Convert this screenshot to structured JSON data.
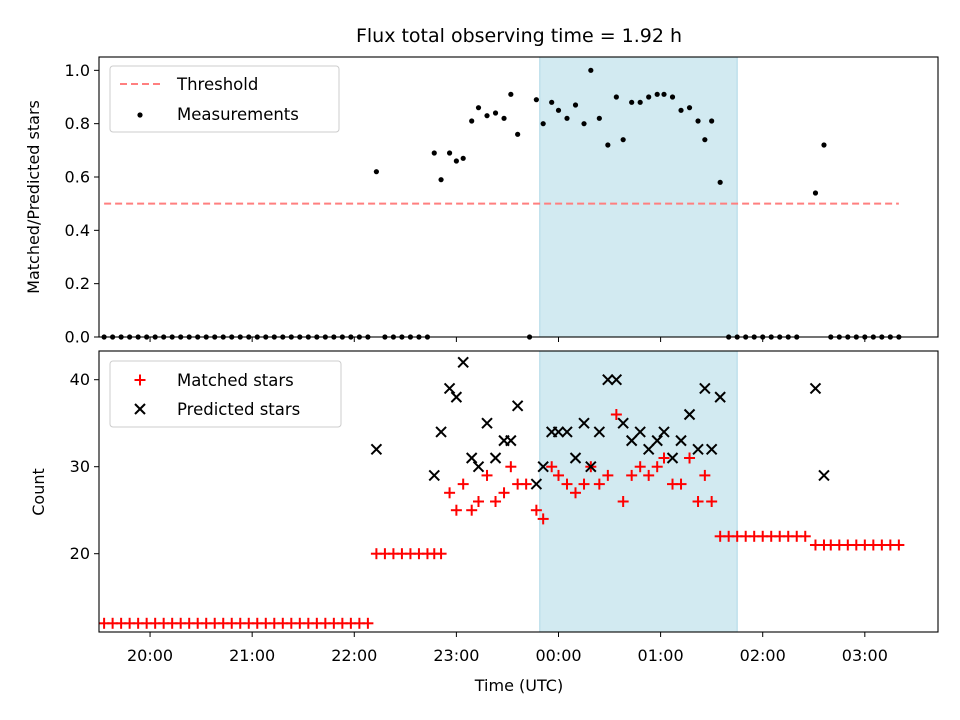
{
  "chart_data": [
    {
      "type": "scatter",
      "title": "Flux total observing time = 1.92 h",
      "xlabel": "",
      "ylabel": "Matched/Predicted stars",
      "ylim": [
        0,
        1.05
      ],
      "yticks": [
        "0.0",
        "0.2",
        "0.4",
        "0.6",
        "0.8",
        "1.0"
      ],
      "xlim": [
        "19:30",
        "03:43"
      ],
      "grid": false,
      "legend_placement": "top-left",
      "shaded_region": {
        "x_start": "23:49",
        "x_end": "01:45",
        "color": "#add8e6"
      },
      "threshold": {
        "name": "Threshold",
        "value": 0.5,
        "x_start": "19:33",
        "x_end": "03:20",
        "color": "#ff7f7f",
        "style": "dashed"
      },
      "series": [
        {
          "name": "Measurements",
          "color": "#000000",
          "marker": "dot",
          "points": [
            [
              "19:33",
              0
            ],
            [
              "19:38",
              0
            ],
            [
              "19:43",
              0
            ],
            [
              "19:48",
              0
            ],
            [
              "19:53",
              0
            ],
            [
              "19:58",
              0
            ],
            [
              "20:03",
              0
            ],
            [
              "20:08",
              0
            ],
            [
              "20:13",
              0
            ],
            [
              "20:18",
              0
            ],
            [
              "20:23",
              0
            ],
            [
              "20:28",
              0
            ],
            [
              "20:33",
              0
            ],
            [
              "20:38",
              0
            ],
            [
              "20:43",
              0
            ],
            [
              "20:48",
              0
            ],
            [
              "20:53",
              0
            ],
            [
              "20:58",
              0
            ],
            [
              "21:03",
              0
            ],
            [
              "21:08",
              0
            ],
            [
              "21:13",
              0
            ],
            [
              "21:18",
              0
            ],
            [
              "21:23",
              0
            ],
            [
              "21:28",
              0
            ],
            [
              "21:33",
              0
            ],
            [
              "21:38",
              0
            ],
            [
              "21:43",
              0
            ],
            [
              "21:48",
              0
            ],
            [
              "21:53",
              0
            ],
            [
              "21:58",
              0
            ],
            [
              "22:03",
              0
            ],
            [
              "22:08",
              0
            ],
            [
              "22:13",
              0.62
            ],
            [
              "22:18",
              0
            ],
            [
              "22:23",
              0
            ],
            [
              "22:28",
              0
            ],
            [
              "22:33",
              0
            ],
            [
              "22:38",
              0
            ],
            [
              "22:43",
              0
            ],
            [
              "22:47",
              0.69
            ],
            [
              "22:51",
              0.59
            ],
            [
              "22:56",
              0.69
            ],
            [
              "23:00",
              0.66
            ],
            [
              "23:04",
              0.67
            ],
            [
              "23:09",
              0.81
            ],
            [
              "23:13",
              0.86
            ],
            [
              "23:18",
              0.83
            ],
            [
              "23:23",
              0.84
            ],
            [
              "23:28",
              0.82
            ],
            [
              "23:32",
              0.91
            ],
            [
              "23:36",
              0.76
            ],
            [
              "23:43",
              0
            ],
            [
              "23:47",
              0.89
            ],
            [
              "23:51",
              0.8
            ],
            [
              "23:56",
              0.88
            ],
            [
              "00:00",
              0.85
            ],
            [
              "00:05",
              0.82
            ],
            [
              "00:10",
              0.87
            ],
            [
              "00:15",
              0.8
            ],
            [
              "00:19",
              1.0
            ],
            [
              "00:24",
              0.82
            ],
            [
              "00:29",
              0.72
            ],
            [
              "00:34",
              0.9
            ],
            [
              "00:38",
              0.74
            ],
            [
              "00:43",
              0.88
            ],
            [
              "00:48",
              0.88
            ],
            [
              "00:53",
              0.9
            ],
            [
              "00:58",
              0.91
            ],
            [
              "01:02",
              0.91
            ],
            [
              "01:07",
              0.9
            ],
            [
              "01:12",
              0.85
            ],
            [
              "01:17",
              0.86
            ],
            [
              "01:22",
              0.81
            ],
            [
              "01:26",
              0.74
            ],
            [
              "01:30",
              0.81
            ],
            [
              "01:35",
              0.58
            ],
            [
              "01:40",
              0
            ],
            [
              "01:45",
              0
            ],
            [
              "01:50",
              0
            ],
            [
              "01:55",
              0
            ],
            [
              "02:00",
              0
            ],
            [
              "02:05",
              0
            ],
            [
              "02:10",
              0
            ],
            [
              "02:15",
              0
            ],
            [
              "02:20",
              0
            ],
            [
              "02:31",
              0.54
            ],
            [
              "02:36",
              0.72
            ],
            [
              "02:40",
              0
            ],
            [
              "02:45",
              0
            ],
            [
              "02:50",
              0
            ],
            [
              "02:55",
              0
            ],
            [
              "03:00",
              0
            ],
            [
              "03:05",
              0
            ],
            [
              "03:10",
              0
            ],
            [
              "03:15",
              0
            ],
            [
              "03:20",
              0
            ]
          ]
        }
      ]
    },
    {
      "type": "scatter",
      "title": "",
      "xlabel": "Time (UTC)",
      "ylabel": "Count",
      "ylim": [
        11,
        43.3
      ],
      "yticks": [
        "20",
        "30",
        "40"
      ],
      "xticks": [
        "20:00",
        "21:00",
        "22:00",
        "23:00",
        "00:00",
        "01:00",
        "02:00",
        "03:00"
      ],
      "xlim": [
        "19:30",
        "03:43"
      ],
      "grid": false,
      "legend_placement": "top-left",
      "shaded_region": {
        "x_start": "23:49",
        "x_end": "01:45",
        "color": "#add8e6"
      },
      "series": [
        {
          "name": "Matched stars",
          "color": "#ff0000",
          "marker": "plus",
          "points": [
            [
              "19:33",
              12
            ],
            [
              "19:38",
              12
            ],
            [
              "19:43",
              12
            ],
            [
              "19:48",
              12
            ],
            [
              "19:53",
              12
            ],
            [
              "19:58",
              12
            ],
            [
              "20:03",
              12
            ],
            [
              "20:08",
              12
            ],
            [
              "20:13",
              12
            ],
            [
              "20:18",
              12
            ],
            [
              "20:23",
              12
            ],
            [
              "20:28",
              12
            ],
            [
              "20:33",
              12
            ],
            [
              "20:38",
              12
            ],
            [
              "20:43",
              12
            ],
            [
              "20:48",
              12
            ],
            [
              "20:53",
              12
            ],
            [
              "20:58",
              12
            ],
            [
              "21:03",
              12
            ],
            [
              "21:08",
              12
            ],
            [
              "21:13",
              12
            ],
            [
              "21:18",
              12
            ],
            [
              "21:23",
              12
            ],
            [
              "21:28",
              12
            ],
            [
              "21:33",
              12
            ],
            [
              "21:38",
              12
            ],
            [
              "21:43",
              12
            ],
            [
              "21:48",
              12
            ],
            [
              "21:53",
              12
            ],
            [
              "21:58",
              12
            ],
            [
              "22:03",
              12
            ],
            [
              "22:08",
              12
            ],
            [
              "22:13",
              20
            ],
            [
              "22:18",
              20
            ],
            [
              "22:23",
              20
            ],
            [
              "22:28",
              20
            ],
            [
              "22:33",
              20
            ],
            [
              "22:38",
              20
            ],
            [
              "22:43",
              20
            ],
            [
              "22:47",
              20
            ],
            [
              "22:51",
              20
            ],
            [
              "22:56",
              27
            ],
            [
              "23:00",
              25
            ],
            [
              "23:04",
              28
            ],
            [
              "23:09",
              25
            ],
            [
              "23:13",
              26
            ],
            [
              "23:18",
              29
            ],
            [
              "23:23",
              26
            ],
            [
              "23:28",
              27
            ],
            [
              "23:32",
              30
            ],
            [
              "23:36",
              28
            ],
            [
              "23:41",
              28
            ],
            [
              "23:47",
              25
            ],
            [
              "23:51",
              24
            ],
            [
              "23:56",
              30
            ],
            [
              "00:00",
              29
            ],
            [
              "00:05",
              28
            ],
            [
              "00:10",
              27
            ],
            [
              "00:15",
              28
            ],
            [
              "00:19",
              30
            ],
            [
              "00:24",
              28
            ],
            [
              "00:29",
              29
            ],
            [
              "00:34",
              36
            ],
            [
              "00:38",
              26
            ],
            [
              "00:43",
              29
            ],
            [
              "00:48",
              30
            ],
            [
              "00:53",
              29
            ],
            [
              "00:58",
              30
            ],
            [
              "01:02",
              31
            ],
            [
              "01:07",
              28
            ],
            [
              "01:12",
              28
            ],
            [
              "01:17",
              31
            ],
            [
              "01:22",
              26
            ],
            [
              "01:26",
              29
            ],
            [
              "01:30",
              26
            ],
            [
              "01:35",
              22
            ],
            [
              "01:40",
              22
            ],
            [
              "01:45",
              22
            ],
            [
              "01:50",
              22
            ],
            [
              "01:55",
              22
            ],
            [
              "02:00",
              22
            ],
            [
              "02:05",
              22
            ],
            [
              "02:10",
              22
            ],
            [
              "02:15",
              22
            ],
            [
              "02:20",
              22
            ],
            [
              "02:25",
              22
            ],
            [
              "02:31",
              21
            ],
            [
              "02:36",
              21
            ],
            [
              "02:40",
              21
            ],
            [
              "02:45",
              21
            ],
            [
              "02:50",
              21
            ],
            [
              "02:55",
              21
            ],
            [
              "03:00",
              21
            ],
            [
              "03:05",
              21
            ],
            [
              "03:10",
              21
            ],
            [
              "03:15",
              21
            ],
            [
              "03:20",
              21
            ]
          ]
        },
        {
          "name": "Predicted stars",
          "color": "#000000",
          "marker": "x",
          "points": [
            [
              "22:13",
              32
            ],
            [
              "22:47",
              29
            ],
            [
              "22:51",
              34
            ],
            [
              "22:56",
              39
            ],
            [
              "23:00",
              38
            ],
            [
              "23:04",
              42
            ],
            [
              "23:09",
              31
            ],
            [
              "23:13",
              30
            ],
            [
              "23:18",
              35
            ],
            [
              "23:23",
              31
            ],
            [
              "23:28",
              33
            ],
            [
              "23:32",
              33
            ],
            [
              "23:36",
              37
            ],
            [
              "23:47",
              28
            ],
            [
              "23:51",
              30
            ],
            [
              "23:56",
              34
            ],
            [
              "00:00",
              34
            ],
            [
              "00:05",
              34
            ],
            [
              "00:10",
              31
            ],
            [
              "00:15",
              35
            ],
            [
              "00:19",
              30
            ],
            [
              "00:24",
              34
            ],
            [
              "00:29",
              40
            ],
            [
              "00:34",
              40
            ],
            [
              "00:38",
              35
            ],
            [
              "00:43",
              33
            ],
            [
              "00:48",
              34
            ],
            [
              "00:53",
              32
            ],
            [
              "00:58",
              33
            ],
            [
              "01:02",
              34
            ],
            [
              "01:07",
              31
            ],
            [
              "01:12",
              33
            ],
            [
              "01:17",
              36
            ],
            [
              "01:22",
              32
            ],
            [
              "01:26",
              39
            ],
            [
              "01:30",
              32
            ],
            [
              "01:35",
              38
            ],
            [
              "02:31",
              39
            ],
            [
              "02:36",
              29
            ]
          ]
        }
      ]
    }
  ]
}
